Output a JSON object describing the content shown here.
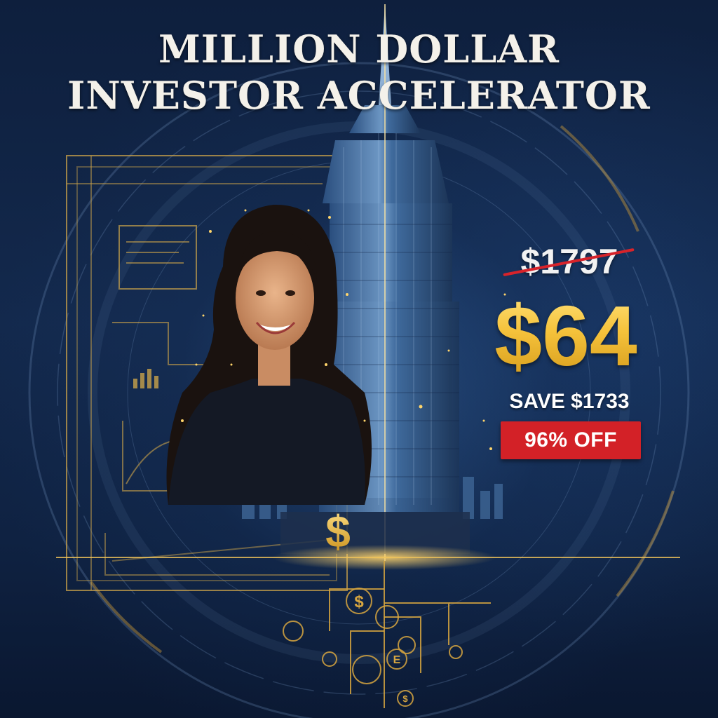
{
  "headline": {
    "line1": "MILLION DOLLAR",
    "line2": "INVESTOR ACCELERATOR"
  },
  "pricing": {
    "original_price": "$1797",
    "sale_price": "$64",
    "savings_label": "SAVE $1733",
    "discount_label": "96% OFF"
  },
  "illustration": {
    "subjects": [
      "woman-portrait",
      "skyscraper-tower",
      "blueprint-frame",
      "gear-circuit",
      "dollar-icon",
      "city-skyline"
    ]
  },
  "colors": {
    "background": "#13294d",
    "gold": "#f3c53a",
    "headline": "#f4f1ea",
    "badge_red": "#d32127",
    "strike_red": "#d8232a"
  }
}
